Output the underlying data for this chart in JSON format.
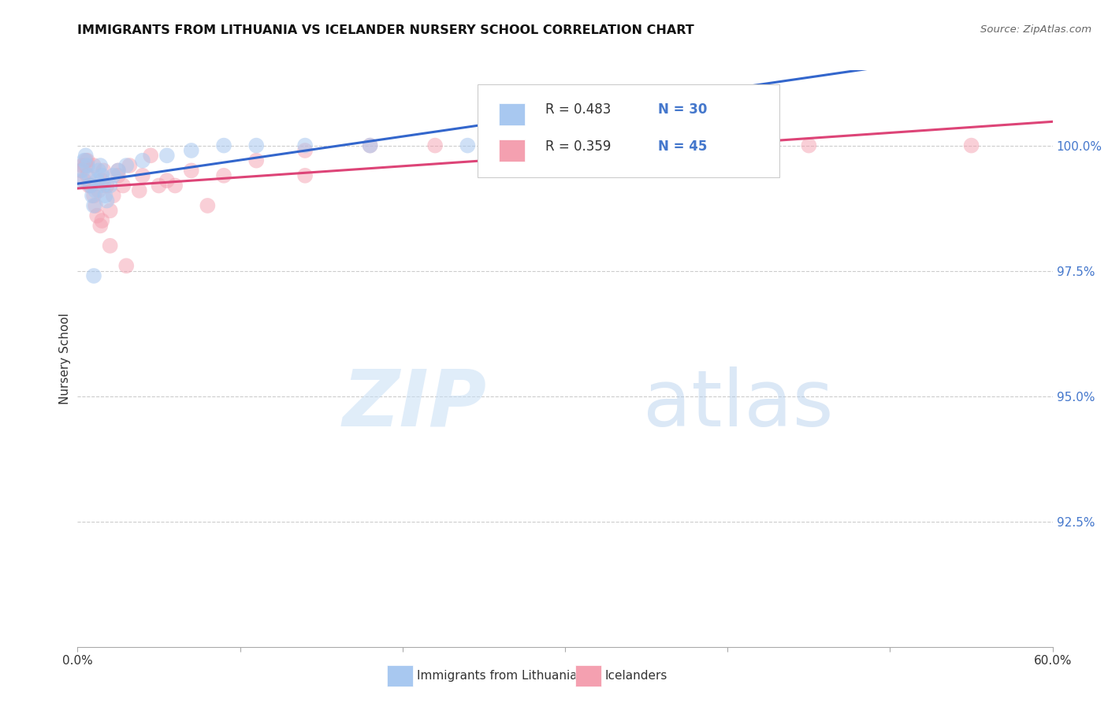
{
  "title": "IMMIGRANTS FROM LITHUANIA VS ICELANDER NURSERY SCHOOL CORRELATION CHART",
  "source": "Source: ZipAtlas.com",
  "ylabel": "Nursery School",
  "ylabel_ticks": [
    "92.5%",
    "95.0%",
    "97.5%",
    "100.0%"
  ],
  "ylabel_values": [
    92.5,
    95.0,
    97.5,
    100.0
  ],
  "xrange": [
    0.0,
    60.0
  ],
  "yrange": [
    90.0,
    101.5
  ],
  "legend_label1": "Immigrants from Lithuania",
  "legend_label2": "Icelanders",
  "r1": "R = 0.483",
  "n1": "N = 30",
  "r2": "R = 0.359",
  "n2": "N = 45",
  "color_blue": "#a8c8f0",
  "color_pink": "#f4a0b0",
  "trendline_blue": "#3366cc",
  "trendline_pink": "#dd4477",
  "blue_x": [
    0.2,
    0.3,
    0.4,
    0.5,
    0.6,
    0.7,
    0.8,
    0.9,
    1.0,
    1.1,
    1.2,
    1.3,
    1.4,
    1.5,
    1.6,
    1.7,
    1.8,
    2.0,
    2.2,
    2.5,
    3.0,
    4.0,
    5.5,
    7.0,
    9.0,
    11.0,
    14.0,
    18.0,
    24.0,
    1.0
  ],
  "blue_y": [
    99.3,
    99.5,
    99.7,
    99.8,
    99.6,
    99.4,
    99.2,
    99.0,
    98.8,
    99.1,
    99.3,
    99.5,
    99.6,
    99.4,
    99.2,
    99.0,
    98.9,
    99.2,
    99.4,
    99.5,
    99.6,
    99.7,
    99.8,
    99.9,
    100.0,
    100.0,
    100.0,
    100.0,
    100.0,
    97.4
  ],
  "pink_x": [
    0.2,
    0.4,
    0.5,
    0.6,
    0.8,
    1.0,
    1.1,
    1.2,
    1.3,
    1.5,
    1.6,
    1.8,
    2.0,
    2.2,
    2.5,
    2.8,
    3.2,
    3.8,
    4.5,
    5.5,
    7.0,
    9.0,
    11.0,
    14.0,
    18.0,
    22.0,
    28.0,
    36.0,
    45.0,
    55.0,
    0.3,
    0.7,
    1.4,
    2.0,
    3.0,
    5.0,
    8.0,
    0.5,
    1.0,
    2.5,
    4.0,
    6.0,
    0.6,
    14.0,
    1.5
  ],
  "pink_y": [
    99.5,
    99.3,
    99.6,
    99.4,
    99.2,
    99.0,
    98.8,
    98.6,
    99.1,
    99.3,
    99.5,
    99.2,
    98.7,
    99.0,
    99.4,
    99.2,
    99.6,
    99.1,
    99.8,
    99.3,
    99.5,
    99.4,
    99.7,
    99.9,
    100.0,
    100.0,
    100.0,
    100.0,
    100.0,
    100.0,
    99.6,
    99.2,
    98.4,
    98.0,
    97.6,
    99.2,
    98.8,
    99.7,
    99.6,
    99.5,
    99.4,
    99.2,
    99.7,
    99.4,
    98.5
  ]
}
